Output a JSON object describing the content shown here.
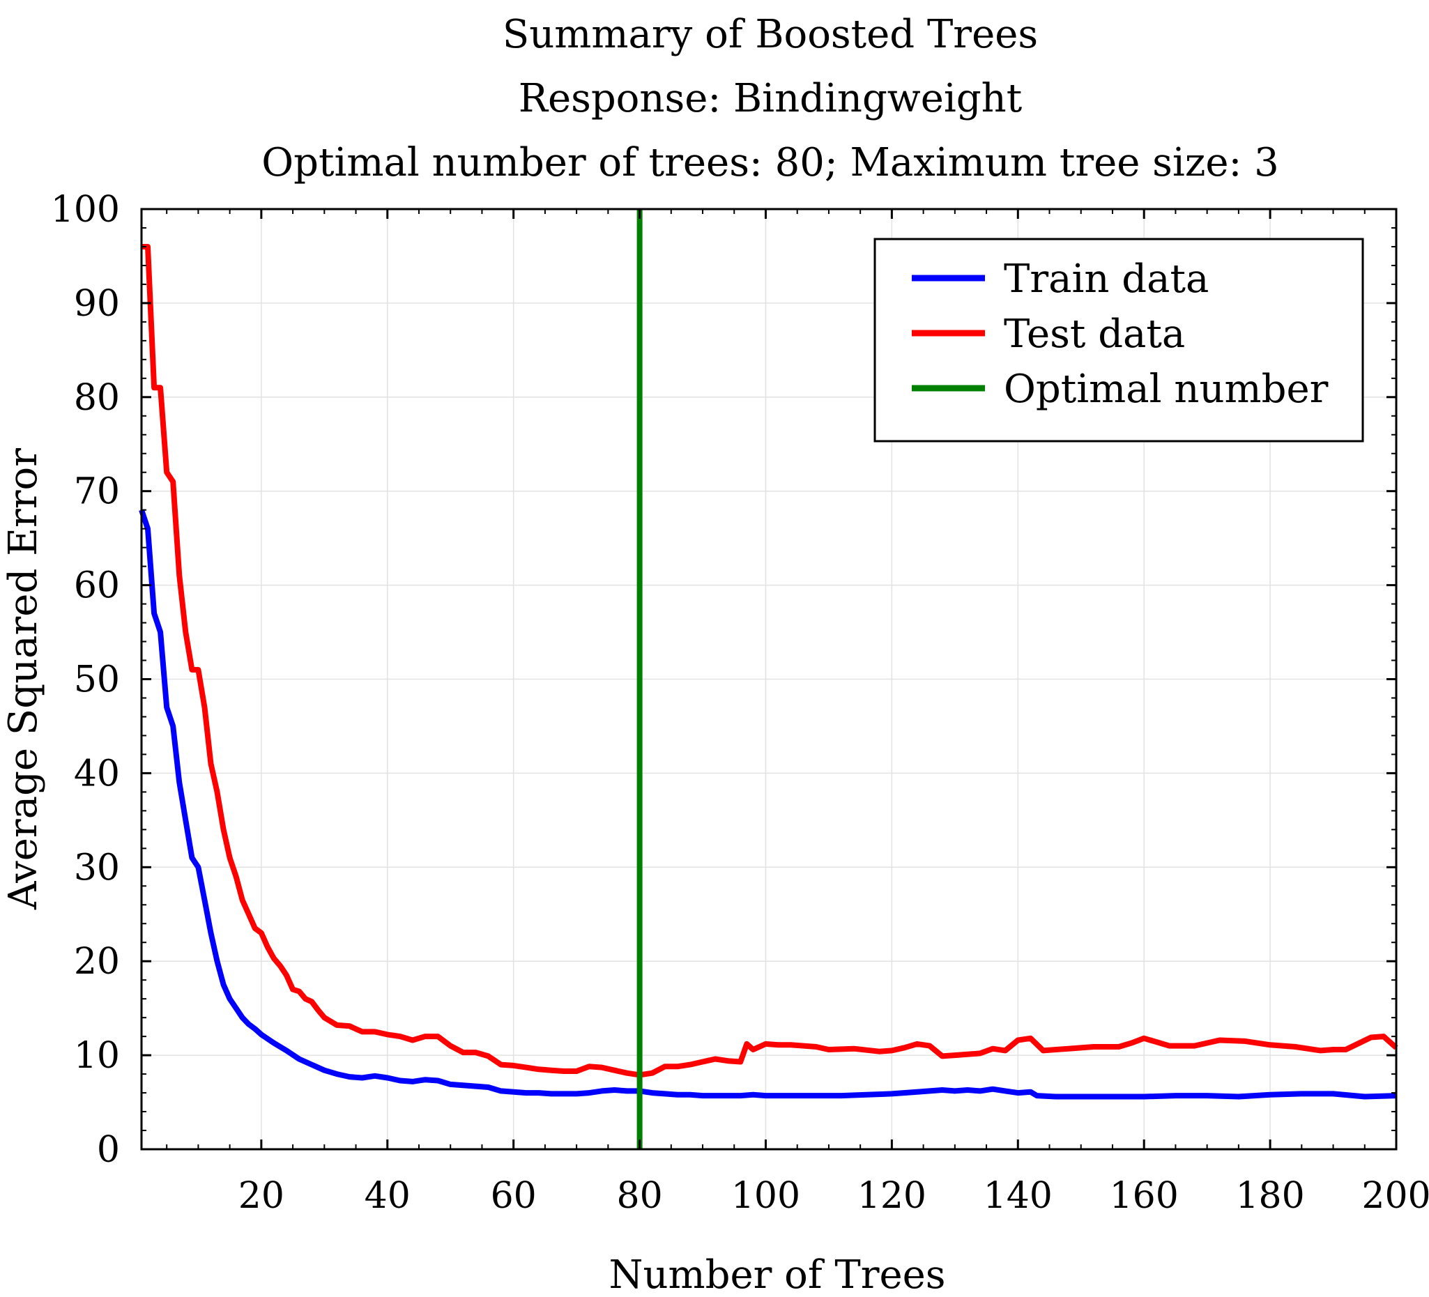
{
  "chart_data": {
    "type": "line",
    "title": "Summary of Boosted Trees",
    "subtitle": "Response: Bindingweight",
    "subtitle2": "Optimal number of trees: 80; Maximum tree size: 3",
    "xlabel": "Number of Trees",
    "ylabel": "Average Squared Error",
    "xlim": [
      1,
      200
    ],
    "ylim": [
      0,
      100
    ],
    "xticks": [
      20,
      40,
      60,
      80,
      100,
      120,
      140,
      160,
      180,
      200
    ],
    "yticks": [
      0,
      10,
      20,
      30,
      40,
      50,
      60,
      70,
      80,
      90,
      100
    ],
    "grid": true,
    "legend_position": "top-right",
    "optimal_x": 80,
    "series": [
      {
        "name": "Train data",
        "color": "#0000ff",
        "x": [
          1,
          2,
          3,
          4,
          5,
          6,
          7,
          8,
          9,
          10,
          11,
          12,
          13,
          14,
          15,
          16,
          17,
          18,
          19,
          20,
          22,
          24,
          26,
          28,
          30,
          32,
          34,
          36,
          38,
          40,
          42,
          44,
          46,
          48,
          50,
          52,
          54,
          56,
          58,
          60,
          62,
          64,
          66,
          68,
          70,
          72,
          74,
          76,
          78,
          80,
          82,
          84,
          86,
          88,
          90,
          92,
          94,
          96,
          98,
          100,
          104,
          108,
          112,
          116,
          120,
          124,
          128,
          130,
          132,
          134,
          136,
          138,
          140,
          142,
          143,
          146,
          150,
          155,
          160,
          165,
          170,
          175,
          180,
          185,
          190,
          195,
          200
        ],
        "values": [
          68,
          66,
          57,
          55,
          47,
          45,
          39,
          35,
          31,
          30,
          26.5,
          23,
          20,
          17.5,
          16,
          15,
          14,
          13.3,
          12.8,
          12.2,
          11.3,
          10.5,
          9.6,
          9.0,
          8.4,
          8.0,
          7.7,
          7.6,
          7.8,
          7.6,
          7.3,
          7.2,
          7.4,
          7.3,
          6.9,
          6.8,
          6.7,
          6.6,
          6.2,
          6.1,
          6.0,
          6.0,
          5.9,
          5.9,
          5.9,
          6.0,
          6.2,
          6.3,
          6.2,
          6.2,
          6.0,
          5.9,
          5.8,
          5.8,
          5.7,
          5.7,
          5.7,
          5.7,
          5.8,
          5.7,
          5.7,
          5.7,
          5.7,
          5.8,
          5.9,
          6.1,
          6.3,
          6.2,
          6.3,
          6.2,
          6.4,
          6.2,
          6.0,
          6.1,
          5.7,
          5.6,
          5.6,
          5.6,
          5.6,
          5.7,
          5.7,
          5.6,
          5.8,
          5.9,
          5.9,
          5.6,
          5.7
        ]
      },
      {
        "name": "Test data",
        "color": "#ff0000",
        "x": [
          1,
          2,
          3,
          4,
          5,
          6,
          7,
          8,
          9,
          10,
          11,
          12,
          13,
          14,
          15,
          16,
          17,
          18,
          19,
          20,
          21,
          22,
          23,
          24,
          25,
          26,
          27,
          28,
          29,
          30,
          32,
          34,
          36,
          38,
          40,
          42,
          44,
          46,
          48,
          50,
          52,
          54,
          56,
          58,
          60,
          62,
          64,
          66,
          68,
          70,
          72,
          74,
          76,
          78,
          80,
          82,
          84,
          86,
          88,
          90,
          92,
          94,
          96,
          97,
          98,
          100,
          102,
          104,
          108,
          110,
          114,
          118,
          120,
          122,
          124,
          126,
          128,
          130,
          132,
          134,
          136,
          138,
          140,
          142,
          144,
          148,
          152,
          156,
          158,
          160,
          164,
          168,
          172,
          176,
          180,
          184,
          188,
          190,
          192,
          196,
          198,
          200
        ],
        "values": [
          96,
          96,
          81,
          81,
          72,
          71,
          61,
          55,
          51,
          51,
          47,
          41,
          38,
          34,
          31,
          29,
          26.5,
          25,
          23.5,
          23,
          21.5,
          20.3,
          19.5,
          18.5,
          17,
          16.8,
          16,
          15.7,
          14.8,
          14,
          13.2,
          13.1,
          12.5,
          12.5,
          12.2,
          12.0,
          11.6,
          12.0,
          12.0,
          11.0,
          10.3,
          10.3,
          9.9,
          9.0,
          8.9,
          8.7,
          8.5,
          8.4,
          8.3,
          8.3,
          8.8,
          8.7,
          8.4,
          8.1,
          7.9,
          8.1,
          8.8,
          8.8,
          9.0,
          9.3,
          9.6,
          9.4,
          9.3,
          11.2,
          10.6,
          11.2,
          11.1,
          11.1,
          10.9,
          10.6,
          10.7,
          10.4,
          10.5,
          10.8,
          11.2,
          11.0,
          9.9,
          10.0,
          10.1,
          10.2,
          10.7,
          10.5,
          11.6,
          11.8,
          10.5,
          10.7,
          10.9,
          10.9,
          11.3,
          11.8,
          11.0,
          11.0,
          11.6,
          11.5,
          11.1,
          10.9,
          10.5,
          10.6,
          10.6,
          11.9,
          12.0,
          10.8
        ]
      },
      {
        "name": "Optimal number",
        "color": "#008000",
        "x": [
          80,
          80
        ],
        "values": [
          0,
          100
        ]
      }
    ]
  }
}
